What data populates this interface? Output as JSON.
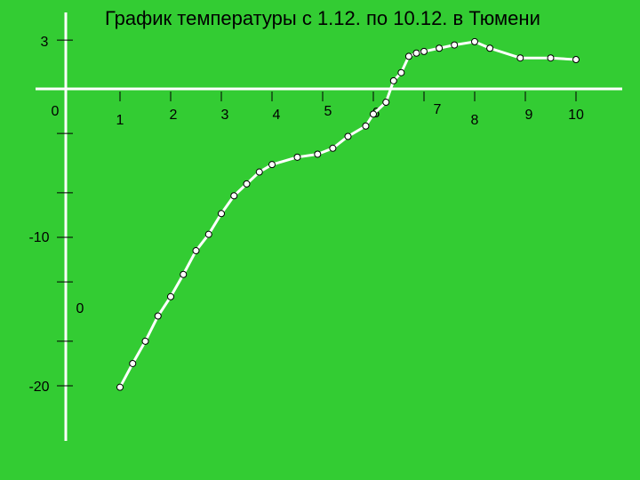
{
  "chart_data": {
    "type": "line",
    "title": "График температуры с 1.12. по 10.12. в Тюмени",
    "xlabel": "",
    "ylabel": "",
    "x_tick_labels": [
      "1",
      "2",
      "3",
      "4",
      "5",
      "6",
      "7",
      "8",
      "9",
      "10"
    ],
    "y_tick_labels": [
      "3",
      "0",
      "-10",
      "-20"
    ],
    "stray_label": "0",
    "series": [
      {
        "x": [
          1.0,
          1.25,
          1.5,
          1.75,
          2.0,
          2.25,
          2.5,
          2.75,
          3.0,
          3.25,
          3.5,
          3.75,
          4.0,
          4.5,
          4.9,
          5.2,
          5.5,
          5.85,
          6.0,
          6.25,
          6.4,
          6.55,
          6.7,
          6.85,
          7.0,
          7.3,
          7.6,
          8.0,
          8.3,
          8.9,
          9.5,
          10.0
        ],
        "y": [
          -20.1,
          -18.5,
          -17.0,
          -15.3,
          -14.0,
          -12.5,
          -10.9,
          -9.8,
          -8.4,
          -7.2,
          -6.4,
          -5.6,
          -5.1,
          -4.6,
          -4.4,
          -4.0,
          -3.2,
          -2.5,
          -1.7,
          -0.9,
          0.5,
          1.0,
          2.0,
          2.2,
          2.3,
          2.5,
          2.7,
          2.9,
          2.5,
          1.9,
          1.9,
          1.8
        ]
      }
    ],
    "ylim": [
      -21.5,
      4.5
    ],
    "xlim": [
      0,
      10.5
    ],
    "grid": false,
    "colors": {
      "background": "#33cc33",
      "line": "#ffffff",
      "marker_fill": "#ffffff",
      "marker_stroke": "#000000",
      "axis": "#ffffff",
      "tick": "#000000"
    }
  }
}
